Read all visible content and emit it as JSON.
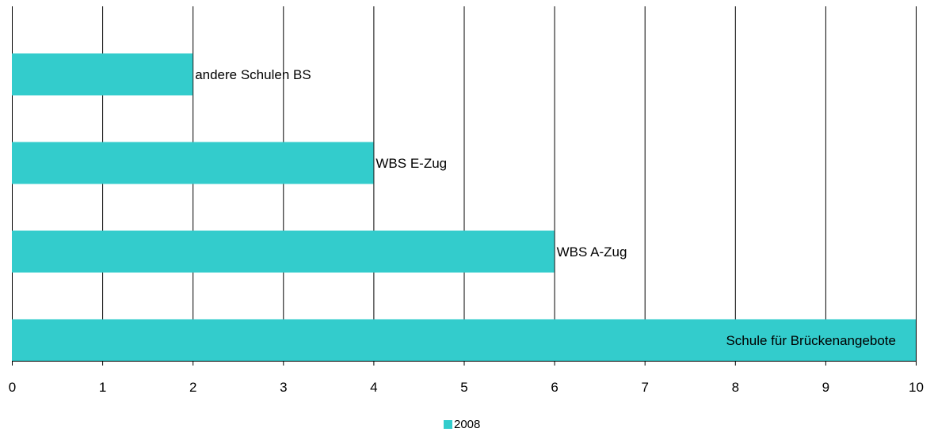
{
  "chart_data": {
    "type": "bar",
    "orientation": "horizontal",
    "categories": [
      "andere Schulen BS",
      "WBS E-Zug",
      "WBS A-Zug",
      "Schule für Brückenangebote"
    ],
    "series": [
      {
        "name": "2008",
        "values": [
          2,
          4,
          6,
          10
        ],
        "color": "#33CCCC"
      }
    ],
    "xlim": [
      0,
      10
    ],
    "xticks": [
      "0",
      "1",
      "2",
      "3",
      "4",
      "5",
      "6",
      "7",
      "8",
      "9",
      "10"
    ],
    "grid": true,
    "legend": "bottom-center"
  }
}
